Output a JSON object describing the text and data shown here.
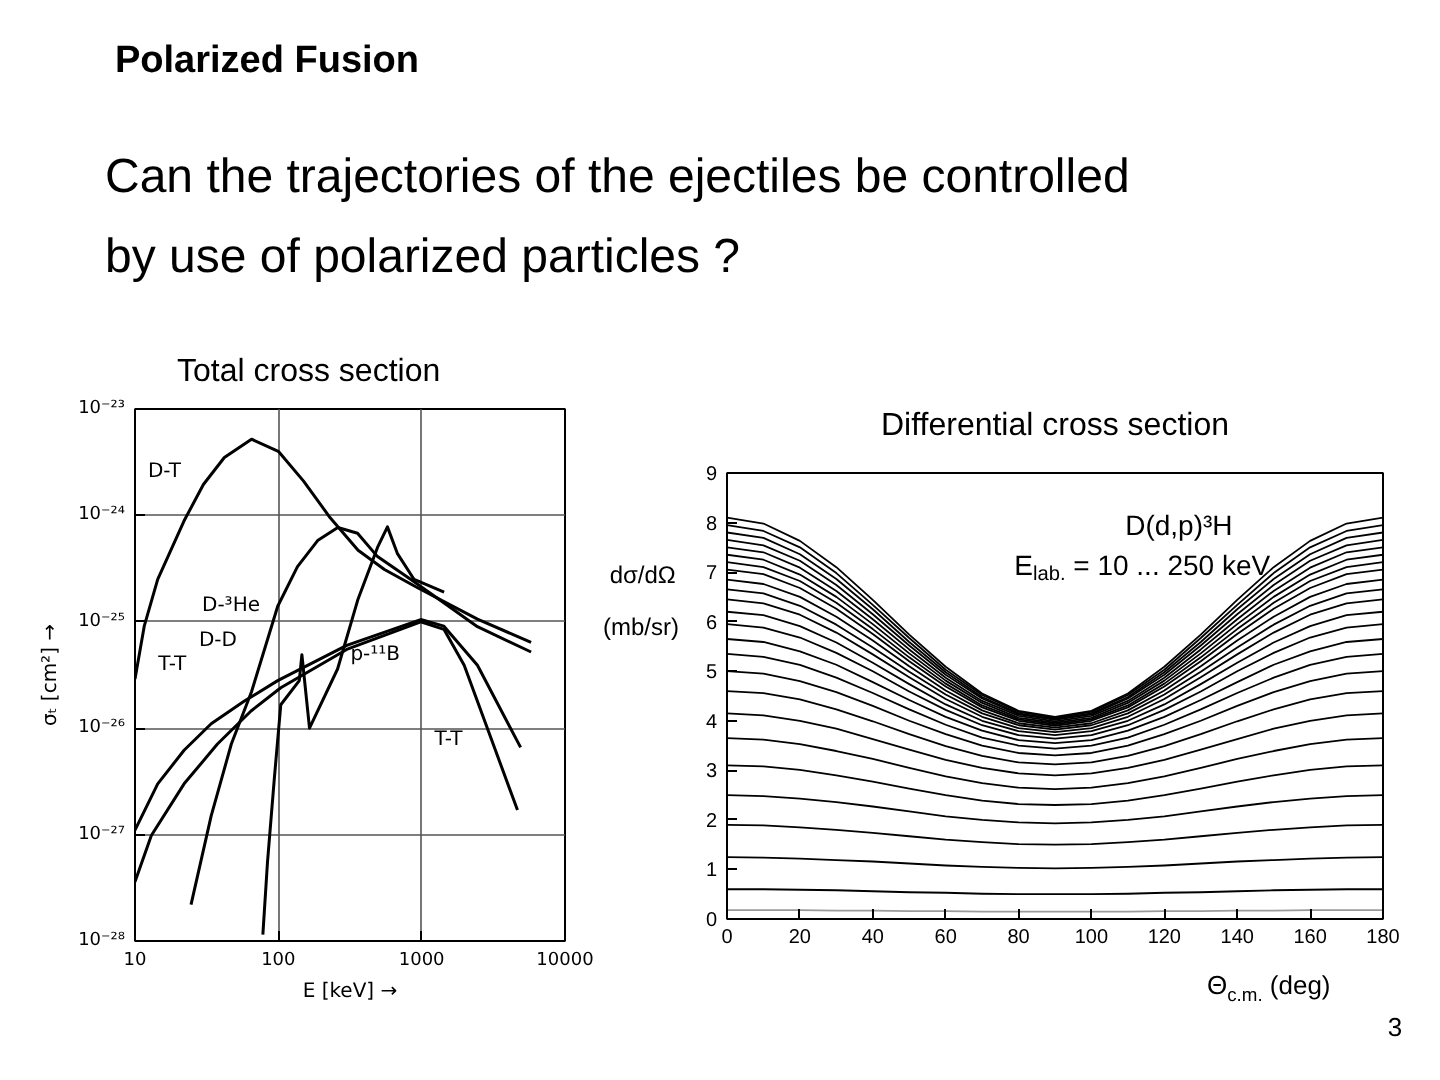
{
  "chart_data": [
    {
      "type": "other",
      "title": "Polarized Fusion",
      "subtitle": "Can the trajectories of the ejectiles be controlled by use of polarized particles ?"
    },
    {
      "type": "line",
      "title": "Total cross section",
      "xlabel": "E [keV] →",
      "ylabel": "σₜ [cm²] →",
      "log": "xy",
      "xlim": [
        10,
        10000
      ],
      "ylim": [
        1e-28,
        1e-23
      ],
      "xticks": [
        10,
        100,
        1000,
        10000
      ],
      "yticks": [
        {
          "value": 1e-28,
          "label": "10⁻²⁸"
        },
        {
          "value": 1e-27,
          "label": "10⁻²⁷"
        },
        {
          "value": 1e-26,
          "label": "10⁻²⁶"
        },
        {
          "value": 1e-25,
          "label": "10⁻²⁵"
        },
        {
          "value": 1e-24,
          "label": "10⁻²⁴"
        },
        {
          "value": 1e-23,
          "label": "10⁻²³"
        }
      ],
      "grid": true,
      "series": [
        {
          "color": "#000000",
          "x": [
            10,
            11.6,
            14.4,
            22,
            30,
            42,
            65,
            100,
            150,
            230,
            360,
            550,
            930,
            2450,
            5800
          ],
          "values": [
            2.9e-26,
            9.1e-26,
            2.5e-25,
            8.9e-25,
            1.95e-24,
            3.5e-24,
            5.2e-24,
            4e-24,
            2.1e-24,
            9.5e-25,
            4.7e-25,
            3.1e-25,
            2.1e-25,
            1.06e-25,
            6.4e-26
          ]
        },
        {
          "color": "#000000",
          "x": [
            24.6,
            34,
            47,
            65,
            99,
            136,
            188,
            260,
            357,
            492,
            841,
            1434,
            2450,
            5800
          ],
          "values": [
            2.2e-28,
            1.5e-27,
            7.1e-27,
            2.2e-26,
            1.4e-25,
            3.3e-25,
            5.8e-25,
            7.7e-25,
            6.8e-25,
            4.1e-25,
            2.5e-25,
            1.5e-25,
            9e-26,
            5.2e-26
          ]
        },
        {
          "color": "#000000",
          "x": [
            78,
            84,
            94,
            104,
            140,
            146,
            165,
            259,
            358,
            492,
            577,
            676,
            886,
            1434
          ],
          "values": [
            1.15e-28,
            5.5e-28,
            3.5e-27,
            1.66e-26,
            2.8e-26,
            4.9e-26,
            1e-26,
            3.6e-26,
            1.6e-25,
            5e-25,
            7.8e-25,
            4.4e-25,
            2.5e-25,
            1.9e-25
          ]
        },
        {
          "color": "#000000",
          "x": [
            10,
            14.4,
            22,
            34,
            58,
            99,
            300,
            985,
            1430,
            2450,
            4900
          ],
          "values": [
            1.1e-27,
            3e-27,
            6.2e-27,
            1.1e-26,
            1.8e-26,
            2.8e-26,
            6e-26,
            1.05e-25,
            9.1e-26,
            3.9e-26,
            6.6e-27
          ]
        },
        {
          "color": "#000000",
          "x": [
            10,
            13,
            22,
            37.6,
            64.5,
            104,
            300,
            985,
            1430,
            1980,
            4660
          ],
          "values": [
            3.6e-28,
            9.8e-28,
            3e-27,
            7.1e-27,
            1.45e-26,
            2.4e-26,
            5.5e-26,
            1e-25,
            8.5e-26,
            3.9e-26,
            1.7e-27
          ]
        }
      ],
      "annotations": [
        "D-T",
        "D-³He",
        "D-D",
        "T-T",
        "p-¹¹B",
        "T-T"
      ]
    },
    {
      "type": "line",
      "title": "Differential cross section",
      "xlabel": "Θ$_{c.m.}$ (deg)",
      "ylabel": "dσ/dΩ (mb/sr)",
      "xlim": [
        0,
        180
      ],
      "ylim": [
        0,
        9
      ],
      "xticks": [
        0,
        20,
        40,
        60,
        80,
        100,
        120,
        140,
        160,
        180
      ],
      "yticks": [
        0,
        1,
        2,
        3,
        4,
        5,
        6,
        7,
        8,
        9
      ],
      "x": [
        0,
        10,
        20,
        30,
        40,
        50,
        60,
        70,
        80,
        90,
        100,
        110,
        120,
        130,
        140,
        150,
        160,
        170,
        180
      ],
      "series": [
        {
          "color": "#9a9a9a",
          "values": [
            0.18,
            0.18,
            0.18,
            0.17,
            0.17,
            0.16,
            0.16,
            0.15,
            0.15,
            0.15,
            0.15,
            0.15,
            0.16,
            0.16,
            0.17,
            0.17,
            0.18,
            0.18,
            0.18
          ]
        },
        {
          "color": "#000000",
          "values": [
            0.6,
            0.6,
            0.59,
            0.58,
            0.56,
            0.54,
            0.53,
            0.51,
            0.5,
            0.5,
            0.5,
            0.51,
            0.53,
            0.54,
            0.56,
            0.58,
            0.59,
            0.6,
            0.6
          ]
        },
        {
          "color": "#000000",
          "values": [
            1.25,
            1.24,
            1.22,
            1.19,
            1.16,
            1.12,
            1.08,
            1.05,
            1.03,
            1.02,
            1.03,
            1.05,
            1.08,
            1.12,
            1.16,
            1.19,
            1.22,
            1.24,
            1.25
          ]
        },
        {
          "color": "#000000",
          "values": [
            1.9,
            1.89,
            1.85,
            1.8,
            1.74,
            1.67,
            1.6,
            1.55,
            1.51,
            1.5,
            1.51,
            1.55,
            1.6,
            1.67,
            1.74,
            1.8,
            1.85,
            1.89,
            1.9
          ]
        },
        {
          "color": "#000000",
          "values": [
            2.5,
            2.48,
            2.43,
            2.36,
            2.27,
            2.17,
            2.07,
            2.0,
            1.95,
            1.93,
            1.95,
            2.0,
            2.07,
            2.17,
            2.27,
            2.36,
            2.43,
            2.48,
            2.5
          ]
        },
        {
          "color": "#000000",
          "values": [
            3.1,
            3.08,
            3.01,
            2.9,
            2.77,
            2.63,
            2.5,
            2.39,
            2.32,
            2.3,
            2.32,
            2.39,
            2.5,
            2.63,
            2.77,
            2.9,
            3.01,
            3.08,
            3.1
          ]
        },
        {
          "color": "#000000",
          "values": [
            3.65,
            3.62,
            3.53,
            3.39,
            3.23,
            3.05,
            2.88,
            2.74,
            2.65,
            2.62,
            2.65,
            2.74,
            2.88,
            3.05,
            3.23,
            3.39,
            3.53,
            3.62,
            3.65
          ]
        },
        {
          "color": "#000000",
          "values": [
            4.15,
            4.11,
            4.0,
            3.84,
            3.63,
            3.42,
            3.21,
            3.05,
            2.94,
            2.9,
            2.94,
            3.05,
            3.21,
            3.42,
            3.63,
            3.84,
            4.0,
            4.11,
            4.15
          ]
        },
        {
          "color": "#000000",
          "values": [
            4.6,
            4.56,
            4.43,
            4.23,
            3.99,
            3.73,
            3.49,
            3.29,
            3.16,
            3.12,
            3.16,
            3.29,
            3.49,
            3.73,
            3.99,
            4.23,
            4.43,
            4.56,
            4.6
          ]
        },
        {
          "color": "#000000",
          "values": [
            5.0,
            4.95,
            4.8,
            4.58,
            4.3,
            4.0,
            3.73,
            3.5,
            3.35,
            3.3,
            3.35,
            3.5,
            3.73,
            4.0,
            4.3,
            4.58,
            4.8,
            4.95,
            5.0
          ]
        },
        {
          "color": "#000000",
          "values": [
            5.35,
            5.29,
            5.13,
            4.87,
            4.56,
            4.23,
            3.92,
            3.66,
            3.5,
            3.44,
            3.5,
            3.66,
            3.92,
            4.23,
            4.56,
            4.87,
            5.13,
            5.29,
            5.35
          ]
        },
        {
          "color": "#000000",
          "values": [
            5.65,
            5.59,
            5.4,
            5.13,
            4.78,
            4.42,
            4.08,
            3.8,
            3.61,
            3.55,
            3.61,
            3.8,
            4.08,
            4.42,
            4.78,
            5.13,
            5.4,
            5.59,
            5.65
          ]
        },
        {
          "color": "#000000",
          "values": [
            5.95,
            5.88,
            5.68,
            5.37,
            5.0,
            4.59,
            4.22,
            3.91,
            3.71,
            3.64,
            3.71,
            3.91,
            4.22,
            4.59,
            5.0,
            5.37,
            5.68,
            5.88,
            5.95
          ]
        },
        {
          "color": "#000000",
          "values": [
            6.2,
            6.13,
            5.91,
            5.58,
            5.17,
            4.74,
            4.33,
            4.0,
            3.79,
            3.71,
            3.79,
            4.0,
            4.33,
            4.74,
            5.17,
            5.58,
            5.91,
            6.13,
            6.2
          ]
        },
        {
          "color": "#000000",
          "values": [
            6.45,
            6.37,
            6.14,
            5.78,
            5.34,
            4.88,
            4.44,
            4.08,
            3.85,
            3.77,
            3.85,
            4.08,
            4.44,
            4.88,
            5.34,
            5.78,
            6.14,
            6.37,
            6.45
          ]
        },
        {
          "color": "#000000",
          "values": [
            6.65,
            6.57,
            6.32,
            5.94,
            5.48,
            4.99,
            4.53,
            4.15,
            3.91,
            3.82,
            3.91,
            4.15,
            4.53,
            4.99,
            5.48,
            5.94,
            6.32,
            6.57,
            6.65
          ]
        },
        {
          "color": "#000000",
          "values": [
            6.85,
            6.76,
            6.5,
            6.1,
            5.62,
            5.1,
            4.61,
            4.21,
            3.95,
            3.86,
            3.95,
            4.21,
            4.61,
            5.1,
            5.62,
            6.1,
            6.5,
            6.76,
            6.85
          ]
        },
        {
          "color": "#000000",
          "values": [
            7.05,
            6.96,
            6.68,
            6.26,
            5.75,
            5.2,
            4.69,
            4.27,
            4.0,
            3.9,
            4.0,
            4.27,
            4.69,
            5.2,
            5.75,
            6.26,
            6.68,
            6.96,
            7.05
          ]
        },
        {
          "color": "#000000",
          "values": [
            7.2,
            7.1,
            6.82,
            6.38,
            5.85,
            5.28,
            4.75,
            4.31,
            4.03,
            3.93,
            4.03,
            4.31,
            4.75,
            5.28,
            5.85,
            6.38,
            6.82,
            7.1,
            7.2
          ]
        },
        {
          "color": "#000000",
          "values": [
            7.35,
            7.25,
            6.95,
            6.5,
            5.95,
            5.36,
            4.81,
            4.36,
            4.06,
            3.96,
            4.06,
            4.36,
            4.81,
            5.36,
            5.95,
            6.5,
            6.95,
            7.25,
            7.35
          ]
        },
        {
          "color": "#000000",
          "values": [
            7.5,
            7.4,
            7.09,
            6.62,
            6.05,
            5.44,
            4.87,
            4.4,
            4.1,
            3.99,
            4.1,
            4.4,
            4.87,
            5.44,
            6.05,
            6.62,
            7.09,
            7.4,
            7.5
          ]
        },
        {
          "color": "#000000",
          "values": [
            7.65,
            7.54,
            7.23,
            6.74,
            6.15,
            5.52,
            4.93,
            4.45,
            4.13,
            4.02,
            4.13,
            4.45,
            4.93,
            5.52,
            6.15,
            6.74,
            7.23,
            7.54,
            7.65
          ]
        },
        {
          "color": "#000000",
          "values": [
            7.8,
            7.69,
            7.36,
            6.86,
            6.25,
            5.59,
            4.98,
            4.48,
            4.15,
            4.04,
            4.15,
            4.48,
            4.98,
            5.59,
            6.25,
            6.86,
            7.36,
            7.69,
            7.8
          ]
        },
        {
          "color": "#000000",
          "values": [
            7.95,
            7.83,
            7.5,
            6.98,
            6.34,
            5.67,
            5.03,
            4.52,
            4.18,
            4.06,
            4.18,
            4.52,
            5.03,
            5.67,
            6.34,
            6.98,
            7.5,
            7.83,
            7.95
          ]
        },
        {
          "color": "#000000",
          "values": [
            8.1,
            7.98,
            7.63,
            7.1,
            6.44,
            5.74,
            5.09,
            4.55,
            4.2,
            4.08,
            4.2,
            4.55,
            5.09,
            5.74,
            6.44,
            7.1,
            7.63,
            7.98,
            8.1
          ]
        }
      ],
      "annotations": [
        "D(d,p)³H",
        "E$_{lab.}$ = 10 ... 250 keV",
        "3"
      ]
    }
  ]
}
